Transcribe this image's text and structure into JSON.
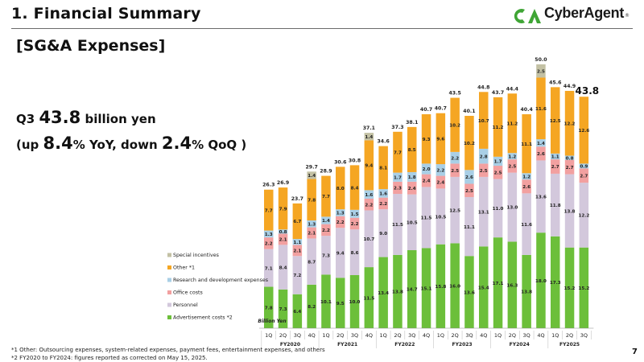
{
  "header": {
    "title": "1.  Financial Summary",
    "section": "[SG&A Expenses]",
    "logo_text": "CyberAgent",
    "logo_reg": "®"
  },
  "summary": {
    "prefix": "Q3",
    "value": "43.8",
    "unit": "billion yen",
    "open": "(up ",
    "yoy_value": "8.4",
    "yoy_label": "% YoY, down ",
    "qoq_value": "2.4",
    "qoq_label": "% QoQ )"
  },
  "footnotes": [
    "*1  Other: Outsourcing expenses, system-related expenses, payment fees, entertainment expenses, and others",
    "*2  FY2020 to FY2024: figures reported as corrected on May 15, 2025."
  ],
  "page_number": "7",
  "colors": {
    "advertisement": "#6cbf3a",
    "personnel": "#d3c8dc",
    "office": "#f2a0a0",
    "research": "#a9cfe6",
    "other": "#f5a623",
    "special": "#c3c1a4",
    "logo_green": "#3fa535"
  },
  "chart_data": {
    "type": "bar",
    "stacked": true,
    "unit_label": "Billion Yen",
    "categories": [
      "1Q",
      "2Q",
      "3Q",
      "4Q",
      "1Q",
      "2Q",
      "3Q",
      "4Q",
      "1Q",
      "2Q",
      "3Q",
      "4Q",
      "1Q",
      "2Q",
      "3Q",
      "4Q",
      "1Q",
      "2Q",
      "3Q",
      "4Q",
      "1Q",
      "2Q",
      "3Q"
    ],
    "fiscal_years": [
      {
        "name": "FY2020",
        "count": 4
      },
      {
        "name": "FY2021",
        "count": 4
      },
      {
        "name": "FY2022",
        "count": 4
      },
      {
        "name": "FY2023",
        "count": 4
      },
      {
        "name": "FY2024",
        "count": 4
      },
      {
        "name": "FY2025",
        "count": 3
      }
    ],
    "totals": [
      26.3,
      26.9,
      23.7,
      29.7,
      28.9,
      30.6,
      30.8,
      37.1,
      34.6,
      37.3,
      38.1,
      40.7,
      40.7,
      43.5,
      40.1,
      44.8,
      43.7,
      44.4,
      40.4,
      50.0,
      45.6,
      44.9,
      43.8
    ],
    "highlight_index": 22,
    "series": [
      {
        "name": "Advertisement costs *2",
        "key": "advertisement",
        "values": [
          7.8,
          7.3,
          6.4,
          8.2,
          10.1,
          9.5,
          10.0,
          11.5,
          13.4,
          13.8,
          14.7,
          15.1,
          15.8,
          16.0,
          13.6,
          15.4,
          17.1,
          16.3,
          13.8,
          18.0,
          17.3,
          15.2,
          15.2
        ]
      },
      {
        "name": "Personnel",
        "key": "personnel",
        "values": [
          7.1,
          8.4,
          7.2,
          8.7,
          7.3,
          9.4,
          8.6,
          10.7,
          9.0,
          11.5,
          10.5,
          11.5,
          10.5,
          12.5,
          11.1,
          13.1,
          11.0,
          13.0,
          11.6,
          13.6,
          11.8,
          13.8,
          12.2
        ]
      },
      {
        "name": "Office costs",
        "key": "office",
        "values": [
          2.2,
          2.1,
          2.1,
          2.1,
          2.2,
          2.2,
          2.2,
          2.2,
          2.2,
          2.3,
          2.4,
          2.4,
          2.4,
          2.5,
          2.5,
          2.5,
          2.5,
          2.5,
          2.6,
          2.6,
          2.7,
          2.7,
          2.7
        ]
      },
      {
        "name": "Research and development expenses",
        "key": "research",
        "values": [
          1.3,
          0.8,
          1.1,
          1.3,
          1.4,
          1.3,
          1.5,
          1.6,
          1.6,
          1.7,
          1.8,
          2.0,
          2.2,
          2.2,
          2.6,
          2.8,
          1.7,
          1.2,
          1.2,
          1.4,
          1.1,
          0.8,
          0.9
        ]
      },
      {
        "name": "Other *1",
        "key": "other",
        "values": [
          7.7,
          7.9,
          6.7,
          7.8,
          7.7,
          8.0,
          8.4,
          9.4,
          8.1,
          7.7,
          8.5,
          9.3,
          9.6,
          10.2,
          10.2,
          10.7,
          11.2,
          11.2,
          11.1,
          11.6,
          12.5,
          12.2,
          12.6
        ]
      },
      {
        "name": "Special incentives",
        "key": "special",
        "values": [
          0,
          0,
          0,
          1.4,
          0,
          0,
          0,
          1.4,
          0,
          0,
          0,
          0,
          0,
          0,
          0,
          0,
          0,
          0,
          0,
          2.5,
          0,
          0,
          0
        ]
      }
    ],
    "legend_order": [
      "special",
      "other",
      "research",
      "office",
      "personnel",
      "advertisement"
    ]
  }
}
